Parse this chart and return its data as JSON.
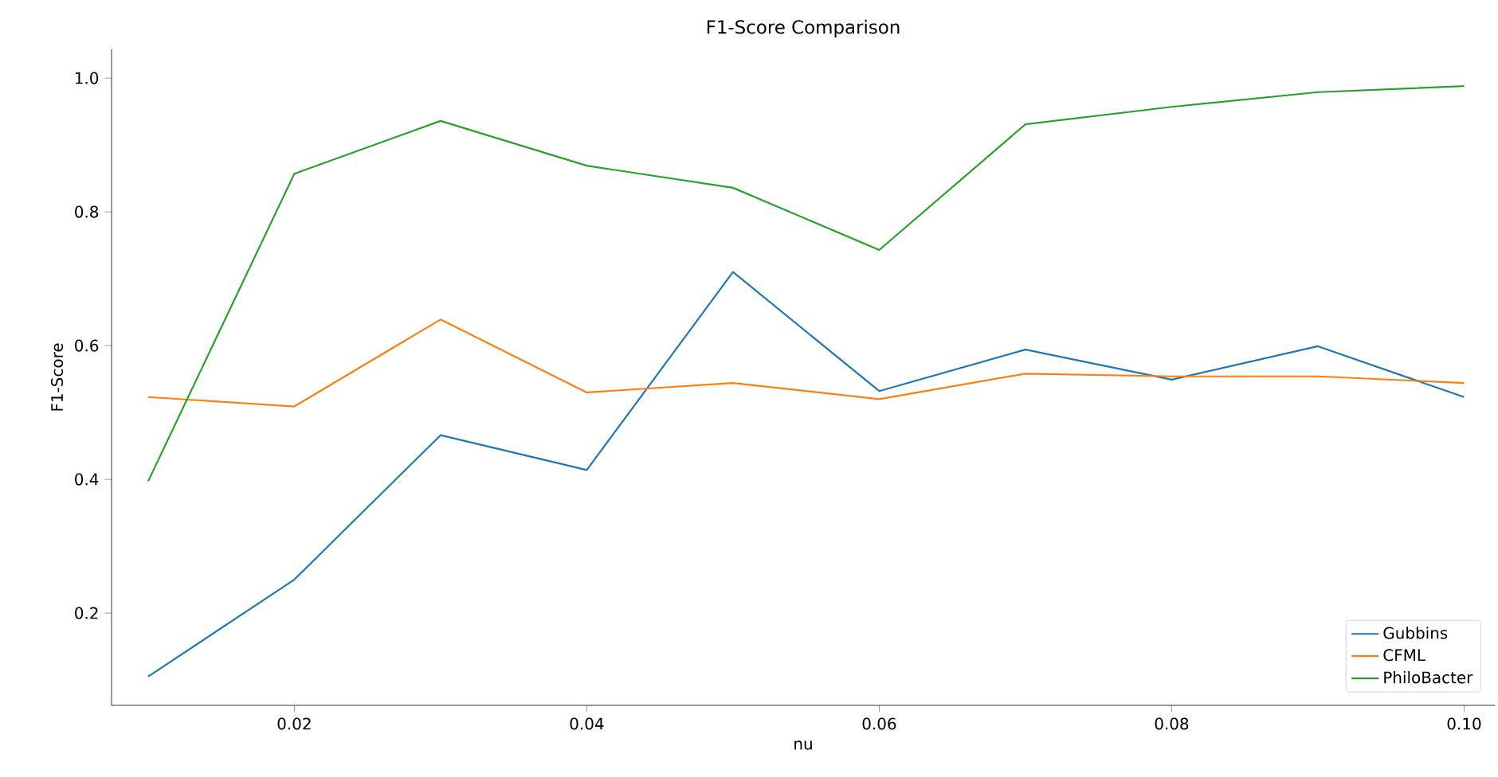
{
  "chart_data": {
    "type": "line",
    "title": "F1-Score Comparison",
    "xlabel": "nu",
    "ylabel": "F1-Score",
    "x": [
      0.01,
      0.02,
      0.03,
      0.04,
      0.05,
      0.06,
      0.07,
      0.08,
      0.09,
      0.1
    ],
    "series": [
      {
        "name": "Gubbins",
        "color": "#1f77b4",
        "values": [
          0.105,
          0.25,
          0.466,
          0.414,
          0.71,
          0.532,
          0.594,
          0.549,
          0.599,
          0.523
        ]
      },
      {
        "name": "CFML",
        "color": "#ff7f0e",
        "values": [
          0.523,
          0.509,
          0.639,
          0.53,
          0.544,
          0.52,
          0.558,
          0.554,
          0.554,
          0.544
        ]
      },
      {
        "name": "PhiloBacter",
        "color": "#2ca02c",
        "values": [
          0.397,
          0.857,
          0.936,
          0.869,
          0.836,
          0.743,
          0.931,
          0.957,
          0.979,
          0.988
        ]
      }
    ],
    "xlim": [
      0.0075,
      0.1021
    ],
    "ylim": [
      0.062,
      1.043
    ],
    "xticks": [
      {
        "value": 0.02,
        "label": "0.02"
      },
      {
        "value": 0.04,
        "label": "0.04"
      },
      {
        "value": 0.06,
        "label": "0.06"
      },
      {
        "value": 0.08,
        "label": "0.08"
      },
      {
        "value": 0.1,
        "label": "0.10"
      }
    ],
    "yticks": [
      {
        "value": 0.2,
        "label": "0.2"
      },
      {
        "value": 0.4,
        "label": "0.4"
      },
      {
        "value": 0.6,
        "label": "0.6"
      },
      {
        "value": 0.8,
        "label": "0.8"
      },
      {
        "value": 1.0,
        "label": "1.0"
      }
    ],
    "legend": "bottom right",
    "grid": false,
    "marker": "none",
    "line_style": "solid"
  }
}
